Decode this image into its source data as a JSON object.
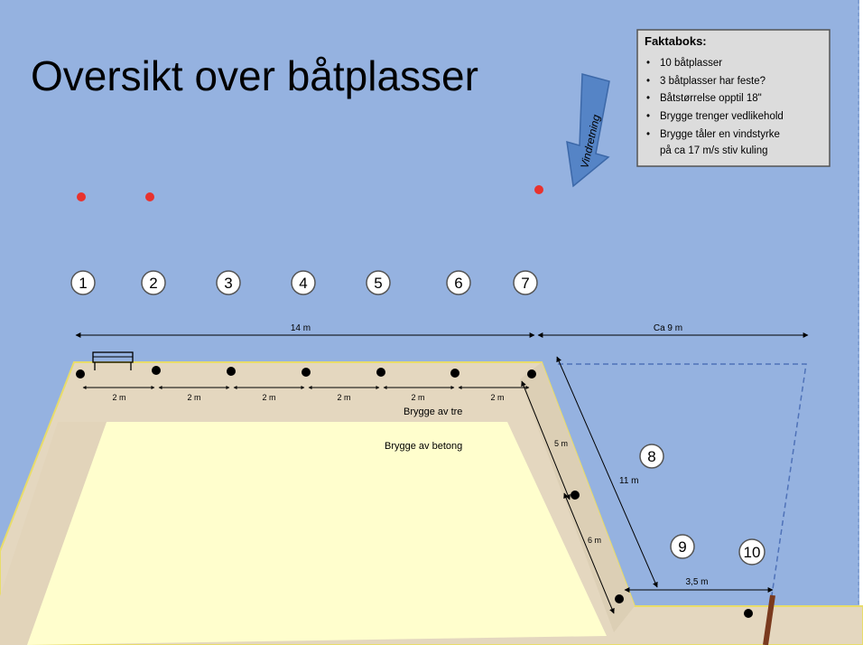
{
  "title": "Oversikt over båtplasser",
  "wind_label": "Vindretning",
  "factbox": {
    "heading": "Faktaboks:",
    "items": [
      "10 båtplasser",
      "3 båtplasser har feste?",
      "Båtstørrelse opptil 18\"",
      "Brygge trenger vedlikehold",
      "Brygge tåler en vindstyrke",
      "på ca 17 m/s stiv kuling"
    ]
  },
  "slots": [
    "1",
    "2",
    "3",
    "4",
    "5",
    "6",
    "7",
    "8",
    "9",
    "10"
  ],
  "measures": {
    "total_length": "14 m",
    "right_span": "Ca 9 m",
    "segment": "2 m",
    "diagonal": "11 m",
    "side_upper": "5 m",
    "side_lower": "6 m",
    "bottom": "3,5 m"
  },
  "materials": {
    "wood": "Brygge av  tre",
    "concrete": "Brygge av  betong"
  },
  "colors": {
    "water": "#95b2e0",
    "wood_deck": "#e4d7bf",
    "concrete": "#fffecd",
    "marker_red": "#e8322e",
    "arrow_blue": "#5584c6",
    "post_brown": "#7a3a1e"
  }
}
